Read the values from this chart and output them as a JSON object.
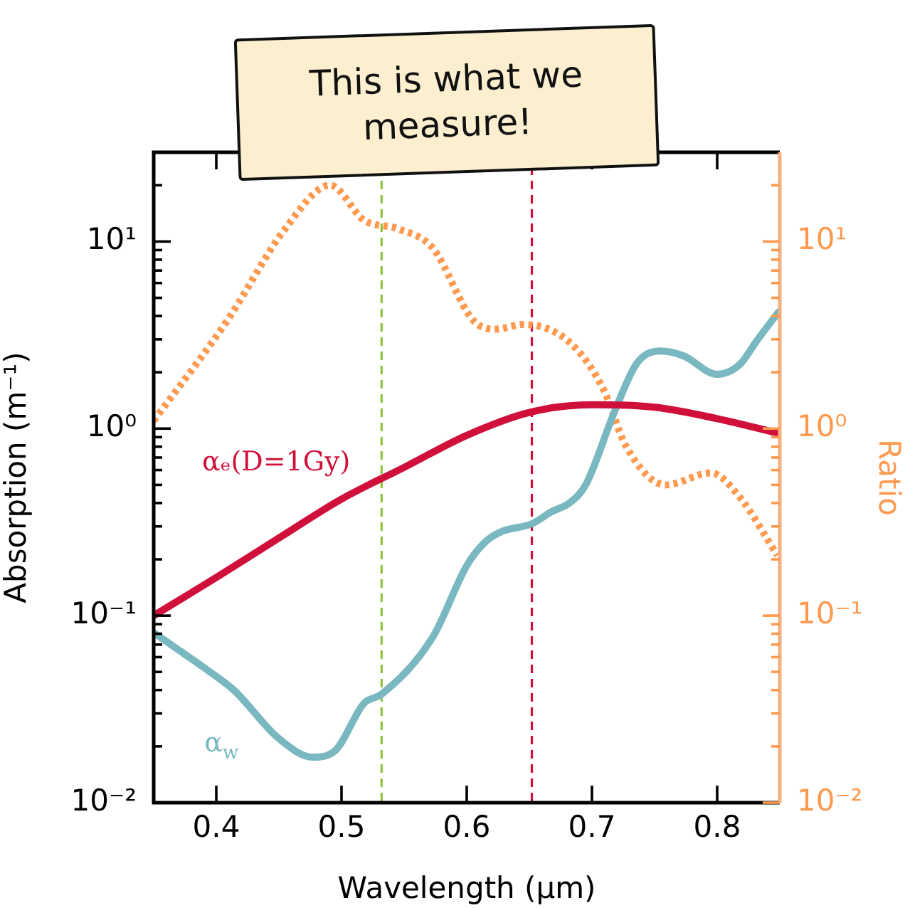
{
  "chart_data": {
    "type": "line",
    "xlabel": "Wavelength (μm)",
    "ylabel": "Absorption (m⁻¹)",
    "y2label": "Ratio",
    "log": "y",
    "grid": false,
    "legend": false,
    "marker": "none",
    "annotations": [
      "This is what we measure!"
    ],
    "xlim": [
      0.35,
      0.85
    ],
    "xticks": [
      0.4,
      0.5,
      0.6,
      0.7,
      0.8
    ],
    "ylim": [
      0.01,
      30
    ],
    "yticks": [
      {
        "value": 0.01,
        "label": "10⁻²"
      },
      {
        "value": 0.02,
        "label": null
      },
      {
        "value": 0.03,
        "label": null
      },
      {
        "value": 0.04,
        "label": null
      },
      {
        "value": 0.05,
        "label": null
      },
      {
        "value": 0.06,
        "label": null
      },
      {
        "value": 0.07,
        "label": null
      },
      {
        "value": 0.08,
        "label": null
      },
      {
        "value": 0.09,
        "label": null
      },
      {
        "value": 0.1,
        "label": "10⁻¹"
      },
      {
        "value": 0.2,
        "label": null
      },
      {
        "value": 0.3,
        "label": null
      },
      {
        "value": 0.4,
        "label": null
      },
      {
        "value": 0.5,
        "label": null
      },
      {
        "value": 0.6,
        "label": null
      },
      {
        "value": 0.7,
        "label": null
      },
      {
        "value": 0.8,
        "label": null
      },
      {
        "value": 0.9,
        "label": null
      },
      {
        "value": 1,
        "label": "10⁰"
      },
      {
        "value": 2,
        "label": null
      },
      {
        "value": 3,
        "label": null
      },
      {
        "value": 4,
        "label": null
      },
      {
        "value": 5,
        "label": null
      },
      {
        "value": 6,
        "label": null
      },
      {
        "value": 7,
        "label": null
      },
      {
        "value": 8,
        "label": null
      },
      {
        "value": 9,
        "label": null
      },
      {
        "value": 10,
        "label": "10¹"
      },
      {
        "value": 20,
        "label": null
      }
    ],
    "ref_lines": [
      {
        "axis": "x",
        "value": 0.532,
        "color": "#8fc23f",
        "line_style": "dashed"
      },
      {
        "axis": "x",
        "value": 0.652,
        "color": "#d0103a",
        "line_style": "dashed"
      }
    ],
    "series": [
      {
        "name": "αₑ(D=1Gy)",
        "color": "#d0103a",
        "line_style": "solid",
        "x": [
          0.35,
          0.4,
          0.45,
          0.5,
          0.55,
          0.6,
          0.65,
          0.7,
          0.75,
          0.8,
          0.85
        ],
        "values": [
          0.1,
          0.16,
          0.26,
          0.42,
          0.62,
          0.92,
          1.22,
          1.34,
          1.3,
          1.13,
          0.94
        ]
      },
      {
        "name": "α$_{w}$",
        "color": "#79b8c0",
        "line_style": "solid",
        "x": [
          0.35,
          0.395,
          0.414,
          0.45,
          0.477,
          0.495,
          0.518,
          0.532,
          0.573,
          0.6,
          0.614,
          0.627,
          0.652,
          0.668,
          0.682,
          0.695,
          0.718,
          0.736,
          0.755,
          0.773,
          0.8,
          0.818,
          0.832,
          0.849
        ],
        "values": [
          0.081,
          0.05,
          0.04,
          0.022,
          0.0175,
          0.019,
          0.034,
          0.038,
          0.077,
          0.185,
          0.245,
          0.28,
          0.31,
          0.36,
          0.4,
          0.5,
          1.23,
          2.24,
          2.6,
          2.45,
          1.95,
          2.2,
          2.97,
          4.2
        ]
      },
      {
        "color": "#fd9a50",
        "line_style": "dotted",
        "x": [
          0.35,
          0.409,
          0.455,
          0.491,
          0.518,
          0.545,
          0.573,
          0.605,
          0.623,
          0.645,
          0.682,
          0.709,
          0.727,
          0.759,
          0.795,
          0.818,
          0.848
        ],
        "values": [
          1.1,
          3.8,
          11.7,
          20,
          13,
          11.7,
          9.2,
          3.8,
          3.4,
          3.6,
          2.9,
          1.63,
          0.81,
          0.5,
          0.58,
          0.43,
          0.21
        ]
      }
    ]
  }
}
